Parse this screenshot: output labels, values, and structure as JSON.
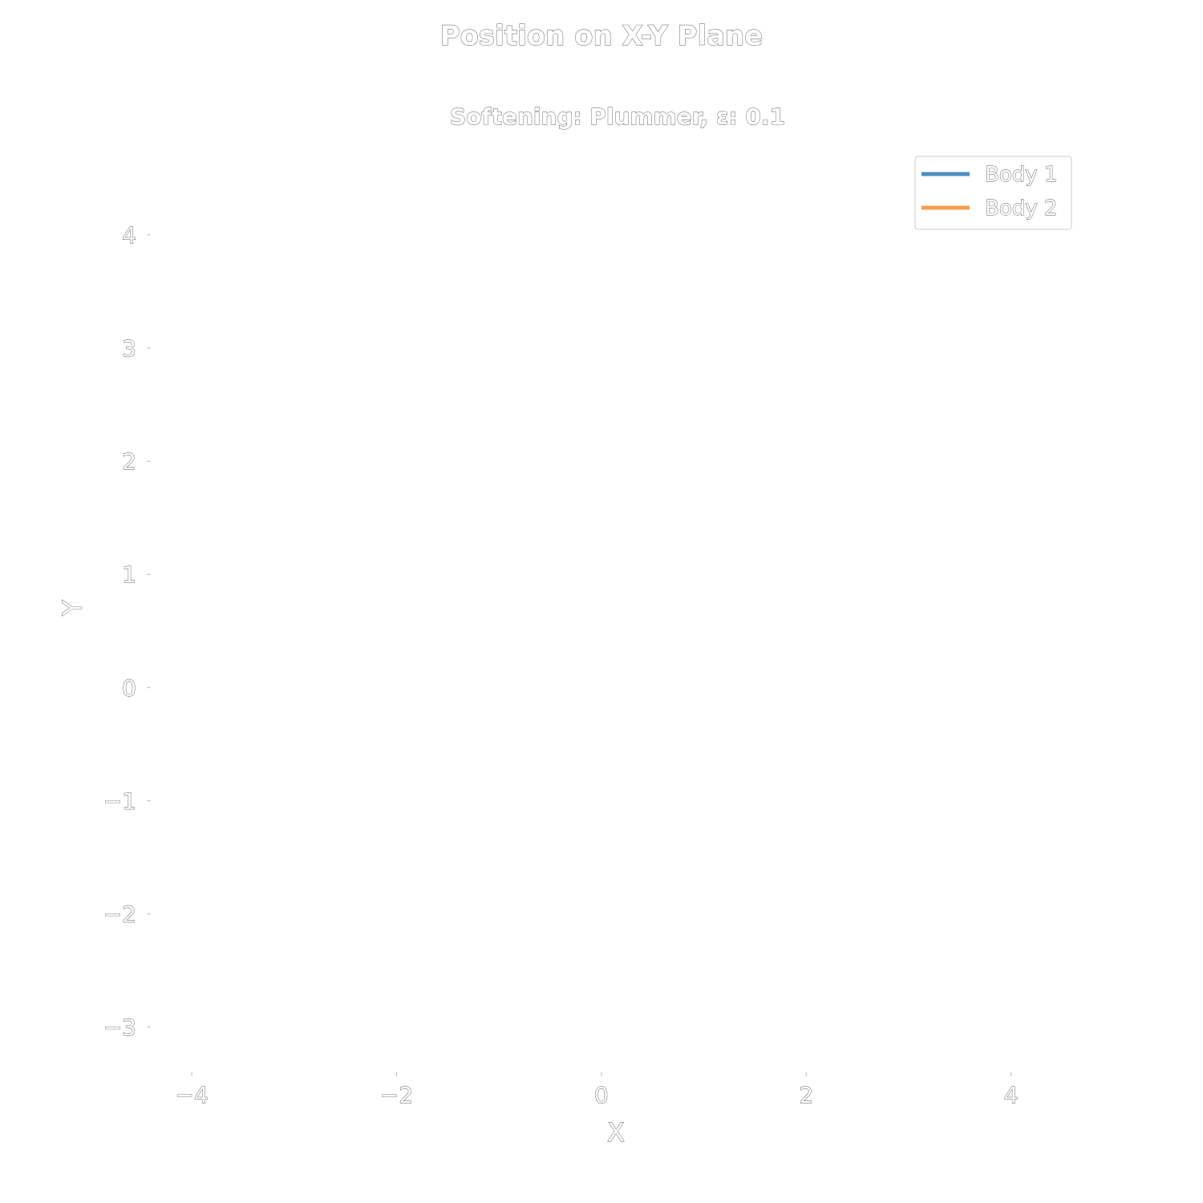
{
  "chart_data": {
    "type": "line",
    "title": "Position on X-Y Plane",
    "subtitle": "Softening: Plummer, ε: 0.1",
    "xlabel": "X",
    "ylabel": "Y",
    "xlim": [
      -4.4,
      4.7
    ],
    "ylim": [
      -3.4,
      4.8
    ],
    "xticks": [
      -4,
      -2,
      0,
      2,
      4
    ],
    "yticks": [
      -3,
      -2,
      -1,
      0,
      1,
      2,
      3,
      4
    ],
    "xtick_labels": [
      "−4",
      "−2",
      "0",
      "2",
      "4"
    ],
    "ytick_labels": [
      "−3",
      "−2",
      "−1",
      "0",
      "1",
      "2",
      "3",
      "4"
    ],
    "grid": false,
    "legend_position": "top-right",
    "series": [
      {
        "name": "Body 1",
        "color": "#4a8fc0",
        "x": [],
        "y": []
      },
      {
        "name": "Body 2",
        "color": "#f5a04a",
        "x": [],
        "y": []
      }
    ]
  }
}
